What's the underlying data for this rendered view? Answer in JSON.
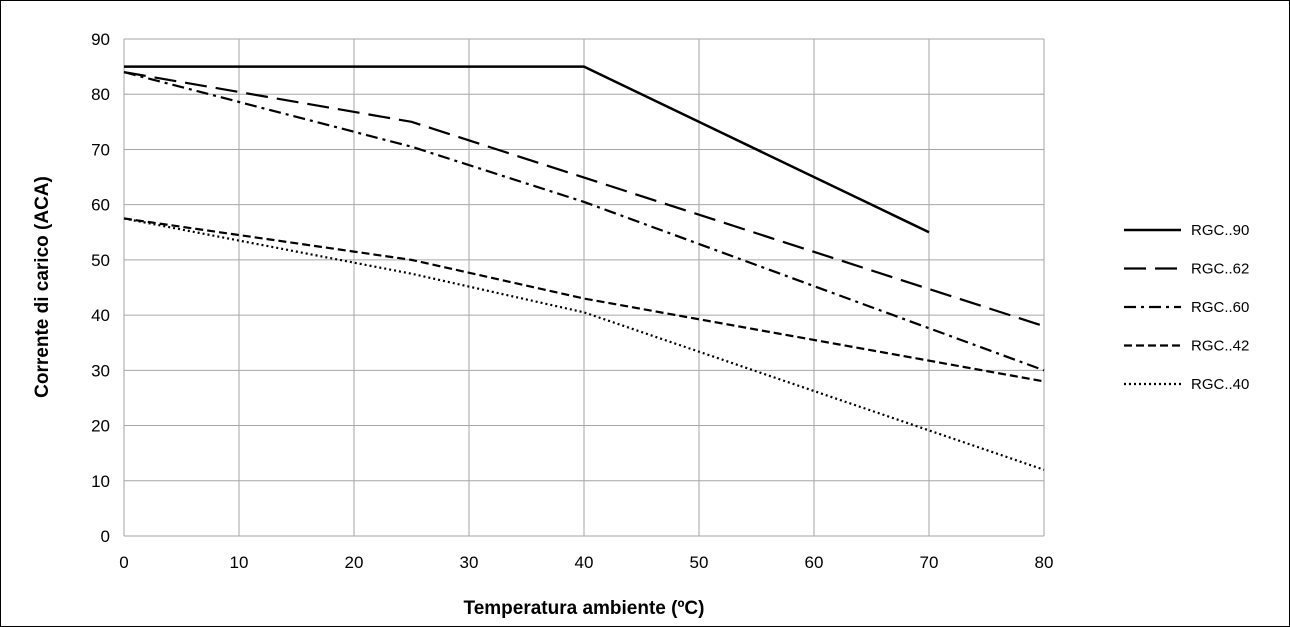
{
  "chart_data": {
    "type": "line",
    "xlabel": "Temperatura ambiente (ºC)",
    "ylabel": "Corrente di carico (ACA)",
    "xlim": [
      0,
      80
    ],
    "ylim": [
      0,
      90
    ],
    "x_ticks": [
      0,
      10,
      20,
      30,
      40,
      50,
      60,
      70,
      80
    ],
    "y_ticks": [
      0,
      10,
      20,
      30,
      40,
      50,
      60,
      70,
      80,
      90
    ],
    "grid": true,
    "legend_position": "right",
    "series": [
      {
        "name": "RGC..90",
        "style": "solid",
        "x": [
          0,
          40,
          70
        ],
        "y": [
          85,
          85,
          55
        ]
      },
      {
        "name": "RGC..62",
        "style": "long-dash",
        "x": [
          0,
          25,
          80
        ],
        "y": [
          84,
          75,
          38
        ]
      },
      {
        "name": "RGC..60",
        "style": "dash-dot",
        "x": [
          0,
          25,
          40,
          80
        ],
        "y": [
          84,
          70.5,
          60.5,
          30
        ]
      },
      {
        "name": "RGC..42",
        "style": "short-dash",
        "x": [
          0,
          25,
          40,
          80
        ],
        "y": [
          57.5,
          50,
          43,
          28
        ]
      },
      {
        "name": "RGC..40",
        "style": "dotted",
        "x": [
          0,
          25,
          40,
          80
        ],
        "y": [
          57.5,
          47.5,
          40.5,
          12
        ]
      }
    ],
    "colors": {
      "line": "#000000",
      "grid": "#a6a6a6",
      "background": "#ffffff"
    }
  }
}
